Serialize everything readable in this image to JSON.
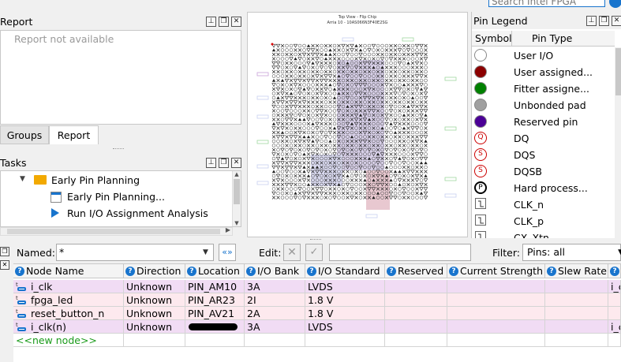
{
  "search": {
    "placeholder": "Search Intel FPGA"
  },
  "report_panel": {
    "title": "Report",
    "empty_text": "Report not available"
  },
  "panel_tabs": [
    {
      "label": "Groups"
    },
    {
      "label": "Report"
    }
  ],
  "tasks_panel": {
    "title": "Tasks",
    "items": [
      {
        "label": "Early Pin Planning"
      },
      {
        "label": "Early Pin Planning..."
      },
      {
        "label": "Run I/O Assignment Analysis"
      }
    ]
  },
  "chip_view": {
    "title": "Top View - Flip Chip",
    "subtitle": "Arria 10 - 10AS066N3F40E2SG"
  },
  "legend": {
    "title": "Pin Legend",
    "col_symbol": "Symbol",
    "col_type": "Pin Type",
    "items": [
      {
        "label": "User I/O",
        "icon": "circle-white",
        "color": "#ffffff"
      },
      {
        "label": "User assigned...",
        "icon": "circle-darkred",
        "color": "#8b0000"
      },
      {
        "label": "Fitter assigne...",
        "icon": "circle-green",
        "color": "#008000"
      },
      {
        "label": "Unbonded pad",
        "icon": "circle-gray",
        "color": "#a0a0a0"
      },
      {
        "label": "Reserved pin",
        "icon": "circle-purple",
        "color": "#4b0096"
      },
      {
        "label": "DQ",
        "icon": "q-icon",
        "glyph": "Q"
      },
      {
        "label": "DQS",
        "icon": "s-icon",
        "glyph": "S"
      },
      {
        "label": "DQSB",
        "icon": "s-icon",
        "glyph": "S"
      },
      {
        "label": "Hard process...",
        "icon": "p-icon",
        "glyph": "P"
      },
      {
        "label": "CLK_n",
        "icon": "clk-n-icon"
      },
      {
        "label": "CLK_p",
        "icon": "clk-p-icon"
      },
      {
        "label": "CX_Xtn",
        "icon": "cx-icon"
      }
    ]
  },
  "filter_bar": {
    "named_label": "Named:",
    "named_value": "*",
    "edit_label": "Edit:",
    "filter_label": "Filter:",
    "filter_value": "Pins: all"
  },
  "table": {
    "columns": [
      "Node Name",
      "Direction",
      "Location",
      "I/O Bank",
      "I/O Standard",
      "Reserved",
      "Current Strength",
      "Slew Rate",
      "I_"
    ],
    "rows": [
      {
        "name": "i_clk",
        "direction": "Unknown",
        "location": "PIN_AM10",
        "bank": "3A",
        "standard": "LVDS",
        "extra": "i_c"
      },
      {
        "name": "fpga_led",
        "direction": "Unknown",
        "location": "PIN_AR23",
        "bank": "2I",
        "standard": "1.8 V",
        "extra": ""
      },
      {
        "name": "reset_button_n",
        "direction": "Unknown",
        "location": "PIN_AV21",
        "bank": "2A",
        "standard": "1.8 V",
        "extra": ""
      },
      {
        "name": "i_clk(n)",
        "direction": "Unknown",
        "location": "",
        "bank": "3A",
        "standard": "LVDS",
        "extra": "i_c"
      }
    ],
    "new_node": "<<new node>>"
  }
}
